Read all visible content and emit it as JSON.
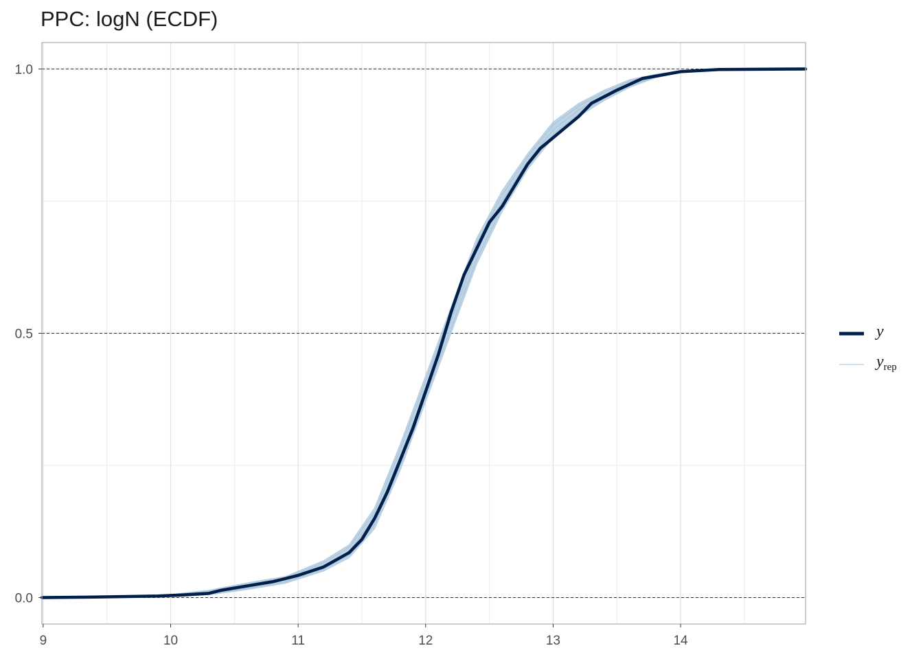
{
  "chart_data": {
    "type": "line",
    "title": "PPC: logN (ECDF)",
    "xlabel": "",
    "ylabel": "",
    "xlim": [
      8.99,
      14.98
    ],
    "ylim": [
      -0.05,
      1.05
    ],
    "x_ticks": [
      9,
      10,
      11,
      12,
      13,
      14
    ],
    "x_tick_labels": [
      "9",
      "10",
      "11",
      "12",
      "13",
      "14"
    ],
    "y_ticks": [
      0,
      0.5,
      1
    ],
    "y_tick_labels": [
      "0.0",
      "0.5",
      "1.0"
    ],
    "x_minor_gridlines": [
      9.5,
      10.5,
      11.5,
      12.5,
      13.5,
      14.5
    ],
    "y_minor_gridlines": [
      0.25,
      0.75
    ],
    "reference_lines_y": [
      0,
      0.5,
      1
    ],
    "grid": true,
    "legend_position": "right",
    "series": [
      {
        "name": "y",
        "label": "y",
        "color": "#011f4b",
        "x": [
          8.99,
          9.4,
          9.9,
          10.1,
          10.3,
          10.4,
          10.6,
          10.8,
          11.0,
          11.2,
          11.4,
          11.5,
          11.6,
          11.7,
          11.8,
          11.9,
          12.0,
          12.1,
          12.2,
          12.3,
          12.4,
          12.5,
          12.6,
          12.7,
          12.8,
          12.9,
          13.0,
          13.1,
          13.2,
          13.3,
          13.5,
          13.7,
          14.0,
          14.3,
          14.98
        ],
        "y": [
          0.0,
          0.001,
          0.003,
          0.005,
          0.008,
          0.014,
          0.022,
          0.03,
          0.042,
          0.058,
          0.085,
          0.11,
          0.15,
          0.2,
          0.26,
          0.32,
          0.39,
          0.46,
          0.54,
          0.61,
          0.66,
          0.71,
          0.74,
          0.78,
          0.82,
          0.85,
          0.87,
          0.89,
          0.91,
          0.935,
          0.96,
          0.982,
          0.995,
          0.999,
          1.0
        ]
      },
      {
        "name": "y_rep",
        "label": "y",
        "label_subscript": "rep",
        "color": "#b3cde0",
        "band_x": [
          8.99,
          9.5,
          10.0,
          10.3,
          10.6,
          10.9,
          11.2,
          11.4,
          11.6,
          11.8,
          12.0,
          12.2,
          12.4,
          12.6,
          12.8,
          13.0,
          13.2,
          13.4,
          13.6,
          13.8,
          14.0,
          14.3,
          14.98
        ],
        "band_low": [
          0.0,
          0.0,
          0.001,
          0.005,
          0.015,
          0.027,
          0.05,
          0.075,
          0.13,
          0.24,
          0.37,
          0.5,
          0.63,
          0.73,
          0.81,
          0.87,
          0.91,
          0.94,
          0.965,
          0.983,
          0.994,
          0.999,
          1.0
        ],
        "band_high": [
          0.0,
          0.001,
          0.006,
          0.014,
          0.028,
          0.04,
          0.07,
          0.1,
          0.17,
          0.29,
          0.42,
          0.55,
          0.68,
          0.77,
          0.84,
          0.9,
          0.935,
          0.96,
          0.98,
          0.99,
          0.997,
          1.0,
          1.0
        ]
      }
    ]
  }
}
